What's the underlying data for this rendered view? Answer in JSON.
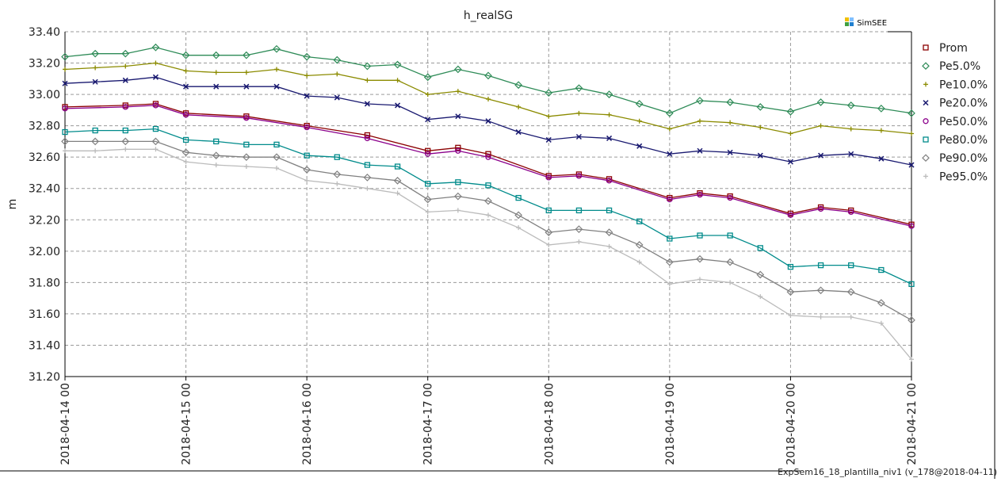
{
  "chart_data": {
    "type": "line",
    "title": "h_realSG",
    "xlabel": "",
    "ylabel": "m",
    "ylim": [
      31.2,
      33.4
    ],
    "yticks": [
      31.2,
      31.4,
      31.6,
      31.8,
      32.0,
      32.2,
      32.4,
      32.6,
      32.8,
      33.0,
      33.2,
      33.4
    ],
    "ytick_labels": [
      "31.20",
      "31.40",
      "31.60",
      "31.80",
      "32.00",
      "32.20",
      "32.40",
      "32.60",
      "32.80",
      "33.00",
      "33.20",
      "33.40"
    ],
    "x_categories": [
      "2018-04-14 00",
      "2018-04-15 00",
      "2018-04-16 00",
      "2018-04-17 00",
      "2018-04-18 00",
      "2018-04-19 00",
      "2018-04-20 00",
      "2018-04-21 00"
    ],
    "x_hours": [
      0,
      24,
      48,
      72,
      96,
      120,
      144,
      168
    ],
    "grid": true,
    "legend_position": "right",
    "series": [
      {
        "name": "Prom",
        "color": "#8b0000",
        "marker": "square",
        "x": [
          0,
          12,
          18,
          24,
          36,
          48,
          60,
          72,
          78,
          84,
          96,
          102,
          108,
          120,
          126,
          132,
          144,
          150,
          156,
          168
        ],
        "values": [
          32.92,
          32.93,
          32.94,
          32.88,
          32.86,
          32.8,
          32.74,
          32.64,
          32.66,
          32.62,
          32.48,
          32.49,
          32.46,
          32.34,
          32.37,
          32.35,
          32.24,
          32.28,
          32.26,
          32.17
        ]
      },
      {
        "name": "Pe5.0%",
        "color": "#2e8b57",
        "marker": "diamond",
        "x": [
          0,
          6,
          12,
          18,
          24,
          30,
          36,
          42,
          48,
          54,
          60,
          66,
          72,
          78,
          84,
          90,
          96,
          102,
          108,
          114,
          120,
          126,
          132,
          138,
          144,
          150,
          156,
          162,
          168
        ],
        "values": [
          33.24,
          33.26,
          33.26,
          33.3,
          33.25,
          33.25,
          33.25,
          33.29,
          33.24,
          33.22,
          33.18,
          33.19,
          33.11,
          33.16,
          33.12,
          33.06,
          33.01,
          33.04,
          33.0,
          32.94,
          32.88,
          32.96,
          32.95,
          32.92,
          32.89,
          32.95,
          32.93,
          32.91,
          32.88
        ]
      },
      {
        "name": "Pe10.0%",
        "color": "#8b8b00",
        "marker": "plus",
        "x": [
          0,
          6,
          12,
          18,
          24,
          30,
          36,
          42,
          48,
          54,
          60,
          66,
          72,
          78,
          84,
          90,
          96,
          102,
          108,
          114,
          120,
          126,
          132,
          138,
          144,
          150,
          156,
          162,
          168
        ],
        "values": [
          33.16,
          33.17,
          33.18,
          33.2,
          33.15,
          33.14,
          33.14,
          33.16,
          33.12,
          33.13,
          33.09,
          33.09,
          33.0,
          33.02,
          32.97,
          32.92,
          32.86,
          32.88,
          32.87,
          32.83,
          32.78,
          32.83,
          32.82,
          32.79,
          32.75,
          32.8,
          32.78,
          32.77,
          32.75
        ]
      },
      {
        "name": "Pe20.0%",
        "color": "#191970",
        "marker": "x",
        "x": [
          0,
          6,
          12,
          18,
          24,
          30,
          36,
          42,
          48,
          54,
          60,
          66,
          72,
          78,
          84,
          90,
          96,
          102,
          108,
          114,
          120,
          126,
          132,
          138,
          144,
          150,
          156,
          162,
          168
        ],
        "values": [
          33.07,
          33.08,
          33.09,
          33.11,
          33.05,
          33.05,
          33.05,
          33.05,
          32.99,
          32.98,
          32.94,
          32.93,
          32.84,
          32.86,
          32.83,
          32.76,
          32.71,
          32.73,
          32.72,
          32.67,
          32.62,
          32.64,
          32.63,
          32.61,
          32.57,
          32.61,
          32.62,
          32.59,
          32.55
        ]
      },
      {
        "name": "Pe50.0%",
        "color": "#8b008b",
        "marker": "circle",
        "x": [
          0,
          12,
          18,
          24,
          36,
          48,
          60,
          72,
          78,
          84,
          96,
          102,
          108,
          120,
          126,
          132,
          144,
          150,
          156,
          168
        ],
        "values": [
          32.91,
          32.92,
          32.93,
          32.87,
          32.85,
          32.79,
          32.72,
          32.62,
          32.64,
          32.6,
          32.47,
          32.48,
          32.45,
          32.33,
          32.36,
          32.34,
          32.23,
          32.27,
          32.25,
          32.16
        ]
      },
      {
        "name": "Pe80.0%",
        "color": "#008b8b",
        "marker": "square",
        "x": [
          0,
          6,
          12,
          18,
          24,
          30,
          36,
          42,
          48,
          54,
          60,
          66,
          72,
          78,
          84,
          90,
          96,
          102,
          108,
          114,
          120,
          126,
          132,
          138,
          144,
          150,
          156,
          162,
          168
        ],
        "values": [
          32.76,
          32.77,
          32.77,
          32.78,
          32.71,
          32.7,
          32.68,
          32.68,
          32.61,
          32.6,
          32.55,
          32.54,
          32.43,
          32.44,
          32.42,
          32.34,
          32.26,
          32.26,
          32.26,
          32.19,
          32.08,
          32.1,
          32.1,
          32.02,
          31.9,
          31.91,
          31.91,
          31.88,
          31.79
        ]
      },
      {
        "name": "Pe90.0%",
        "color": "#808080",
        "marker": "diamond",
        "x": [
          0,
          6,
          12,
          18,
          24,
          30,
          36,
          42,
          48,
          54,
          60,
          66,
          72,
          78,
          84,
          90,
          96,
          102,
          108,
          114,
          120,
          126,
          132,
          138,
          144,
          150,
          156,
          162,
          168
        ],
        "values": [
          32.7,
          32.7,
          32.7,
          32.7,
          32.63,
          32.61,
          32.6,
          32.6,
          32.52,
          32.49,
          32.47,
          32.45,
          32.33,
          32.35,
          32.32,
          32.23,
          32.12,
          32.14,
          32.12,
          32.04,
          31.93,
          31.95,
          31.93,
          31.85,
          31.74,
          31.75,
          31.74,
          31.67,
          31.56
        ]
      },
      {
        "name": "Pe95.0%",
        "color": "#bbbbbb",
        "marker": "plus",
        "x": [
          0,
          6,
          12,
          18,
          24,
          30,
          36,
          42,
          48,
          54,
          60,
          66,
          72,
          78,
          84,
          90,
          96,
          102,
          108,
          114,
          120,
          126,
          132,
          138,
          144,
          150,
          156,
          162,
          168
        ],
        "values": [
          32.64,
          32.64,
          32.65,
          32.65,
          32.57,
          32.55,
          32.54,
          32.53,
          32.45,
          32.43,
          32.4,
          32.37,
          32.25,
          32.26,
          32.23,
          32.15,
          32.04,
          32.06,
          32.03,
          31.93,
          31.79,
          31.82,
          31.8,
          31.71,
          31.59,
          31.58,
          31.58,
          31.54,
          31.31
        ]
      }
    ]
  },
  "logo": {
    "text": "SimSEE"
  },
  "footer": {
    "text": "ExpSem16_18_plantilla_niv1 (v_178@2018-04-11)"
  }
}
